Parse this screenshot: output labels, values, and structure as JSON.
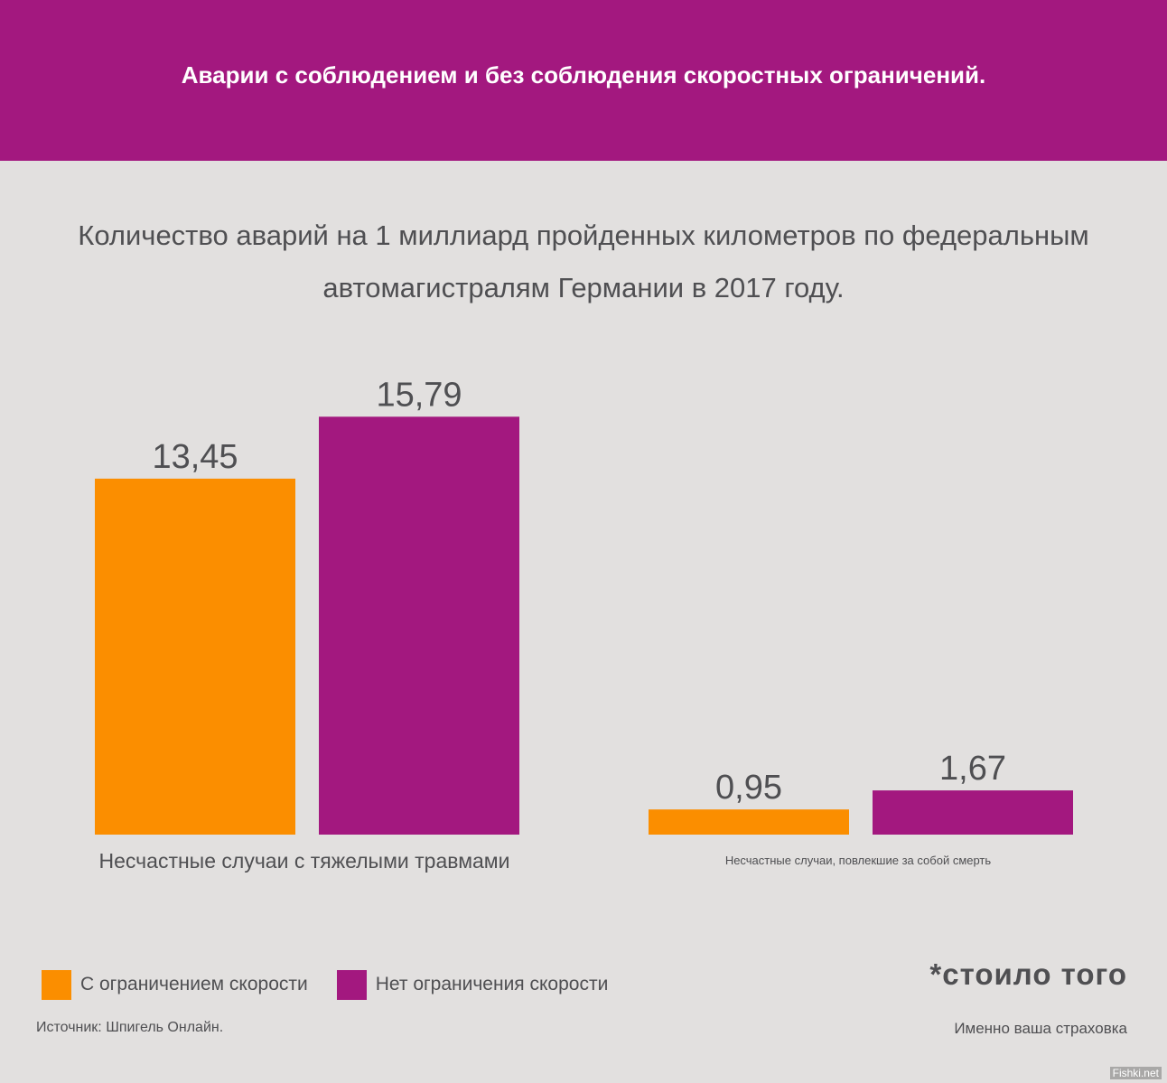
{
  "header": {
    "title": "Аварии с соблюдением и без соблюдения скоростных ограничений."
  },
  "subtitle": {
    "line1": "Количество аварий на 1 миллиард пройденных километров по федеральным",
    "line2": "автомагистралям Германии в 2017 году."
  },
  "colors": {
    "header_bg": "#a3187f",
    "page_bg": "#e2e0df",
    "with_limit": "#fb8e00",
    "no_limit": "#a3187f",
    "text": "#4f4f52"
  },
  "chart_data": [
    {
      "type": "bar",
      "categories": [
        "Несчастные случаи с тяжелыми травмами"
      ],
      "series": [
        {
          "name": "С ограничением скорости",
          "values": [
            13.45
          ],
          "labels": [
            "13,45"
          ]
        },
        {
          "name": "Нет ограничения скорости",
          "values": [
            15.79
          ],
          "labels": [
            "15,79"
          ]
        }
      ]
    },
    {
      "type": "bar",
      "categories": [
        "Несчастные случаи, повлекшие за собой смерть"
      ],
      "series": [
        {
          "name": "С ограничением скорости",
          "values": [
            0.95
          ],
          "labels": [
            "0,95"
          ]
        },
        {
          "name": "Нет ограничения скорости",
          "values": [
            1.67
          ],
          "labels": [
            "1,67"
          ]
        }
      ]
    }
  ],
  "legend": {
    "with_limit": "С ограничением скорости",
    "no_limit": "Нет ограничения скорости"
  },
  "source": "Источник: Шпигель Онлайн.",
  "tagline": "*стоило того",
  "tagline_sub": "Именно ваша страховка",
  "watermark": "Fishki.net"
}
